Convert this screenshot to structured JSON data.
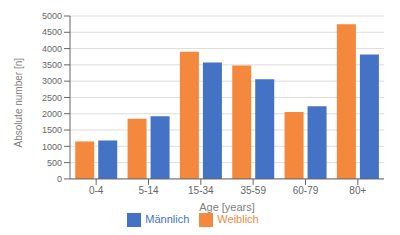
{
  "chart_data": {
    "type": "bar",
    "xlabel": "Age [years]",
    "ylabel": "Absolute number [n]",
    "categories": [
      "0-4",
      "5-14",
      "15-34",
      "35-59",
      "60-79",
      "80+"
    ],
    "series": [
      {
        "name": "Weiblich",
        "color": "#F4883C",
        "values": [
          1150,
          1850,
          3900,
          3480,
          2050,
          4750
        ]
      },
      {
        "name": "Männlich",
        "color": "#4472C4",
        "values": [
          1180,
          1920,
          3570,
          3060,
          2230,
          3820
        ]
      }
    ],
    "ylim": [
      0,
      5000
    ],
    "yticks": [
      0,
      500,
      1000,
      1500,
      2000,
      2500,
      3000,
      3500,
      4000,
      4500,
      5000
    ],
    "grid": true,
    "legend": "bottom"
  }
}
